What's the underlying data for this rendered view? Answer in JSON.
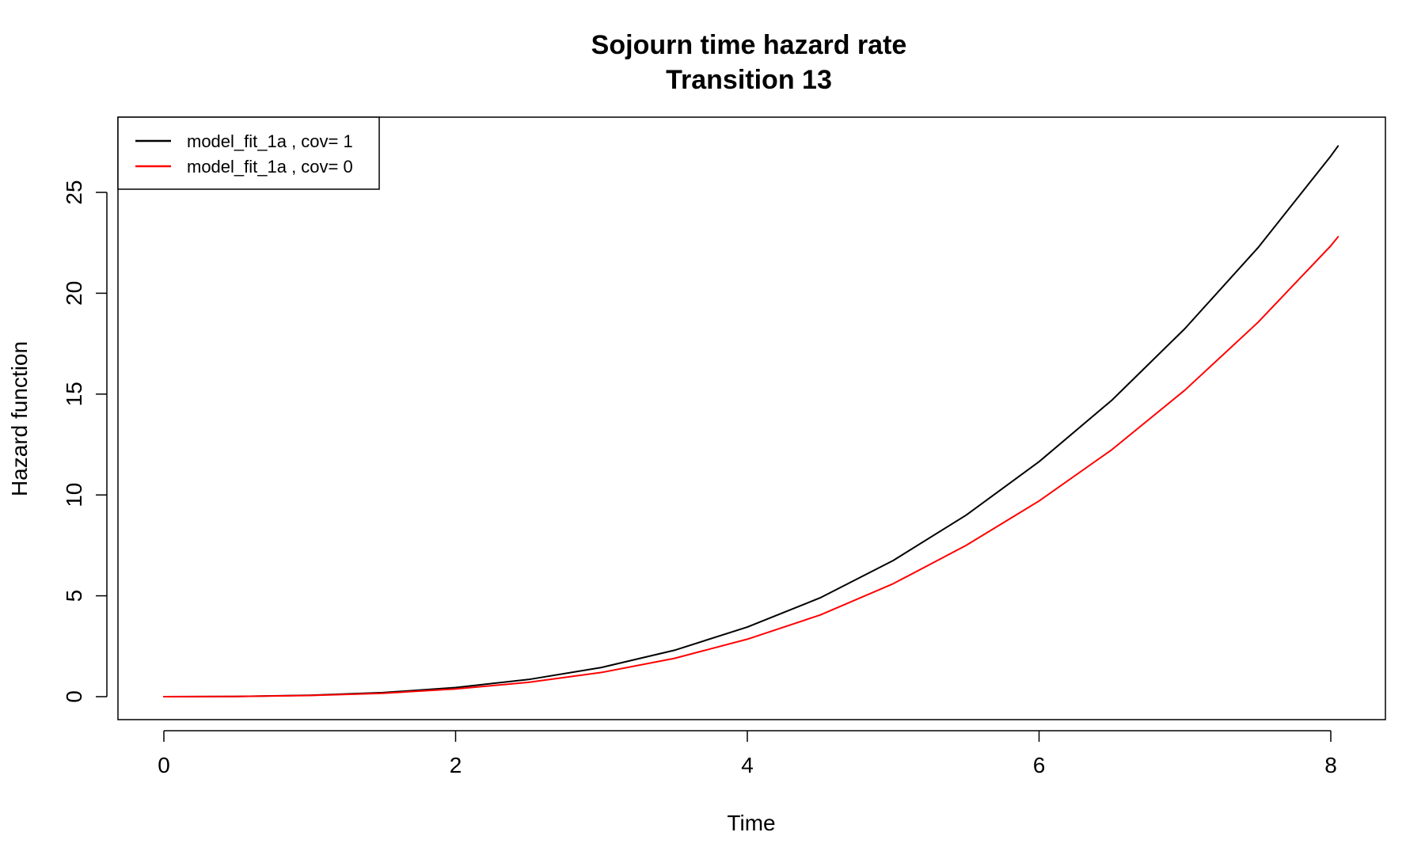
{
  "chart_data": {
    "type": "line",
    "title": "Sojourn time hazard rate",
    "subtitle": "Transition 13",
    "xlabel": "Time",
    "ylabel": "Hazard function",
    "xlim": [
      0,
      8.05
    ],
    "ylim": [
      0,
      27.3
    ],
    "x_ticks": [
      "0",
      "2",
      "4",
      "6",
      "8"
    ],
    "y_ticks": [
      "0",
      "5",
      "10",
      "15",
      "20",
      "25"
    ],
    "grid": false,
    "legend_position": "top-left",
    "series": [
      {
        "name": "model_fit_1a , cov= 1",
        "color": "#000000",
        "x": [
          0,
          0.5,
          1,
          1.5,
          2,
          2.5,
          3,
          3.5,
          4,
          4.5,
          5,
          5.5,
          6,
          6.5,
          7,
          7.5,
          8,
          8.05
        ],
        "y": [
          0,
          0.01,
          0.07,
          0.2,
          0.45,
          0.85,
          1.45,
          2.3,
          3.45,
          4.9,
          6.75,
          9.0,
          11.65,
          14.7,
          18.25,
          22.25,
          26.8,
          27.3
        ]
      },
      {
        "name": "model_fit_1a , cov= 0",
        "color": "#ff0000",
        "x": [
          0,
          0.5,
          1,
          1.5,
          2,
          2.5,
          3,
          3.5,
          4,
          4.5,
          5,
          5.5,
          6,
          6.5,
          7,
          7.5,
          8,
          8.05
        ],
        "y": [
          0,
          0.01,
          0.06,
          0.17,
          0.38,
          0.71,
          1.2,
          1.9,
          2.85,
          4.05,
          5.6,
          7.5,
          9.7,
          12.25,
          15.2,
          18.55,
          22.35,
          22.8
        ]
      }
    ]
  }
}
